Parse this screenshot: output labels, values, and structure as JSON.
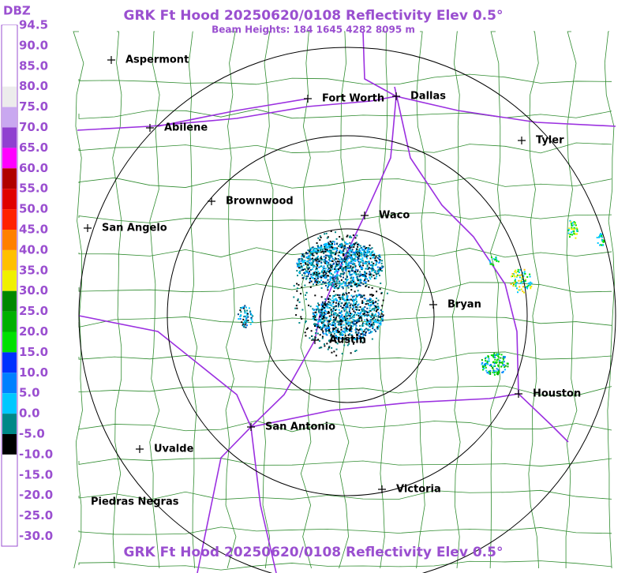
{
  "header": {
    "title": "GRK Ft Hood 20250620/0108 Reflectivity Elev 0.5°",
    "subtitle": "Beam Heights: 184 1645 4282 8095 m"
  },
  "footer": {
    "title": "GRK Ft Hood 20250620/0108 Reflectivity Elev 0.5°"
  },
  "legend": {
    "unit": "DBZ",
    "items": [
      {
        "label": "94.5",
        "color": "#ffffff"
      },
      {
        "label": "90.0",
        "color": "#ffffff"
      },
      {
        "label": "85.0",
        "color": "#ffffff"
      },
      {
        "label": "80.0",
        "color": "#ececec"
      },
      {
        "label": "75.0",
        "color": "#c9a8f0"
      },
      {
        "label": "70.0",
        "color": "#9040d0"
      },
      {
        "label": "65.0",
        "color": "#ff00ff"
      },
      {
        "label": "60.0",
        "color": "#b00000"
      },
      {
        "label": "55.0",
        "color": "#e00000"
      },
      {
        "label": "50.0",
        "color": "#ff2000"
      },
      {
        "label": "45.0",
        "color": "#ff8000"
      },
      {
        "label": "40.0",
        "color": "#ffc000"
      },
      {
        "label": "35.0",
        "color": "#f0f000"
      },
      {
        "label": "30.0",
        "color": "#008800"
      },
      {
        "label": "25.0",
        "color": "#00b000"
      },
      {
        "label": "20.0",
        "color": "#00e000"
      },
      {
        "label": "15.0",
        "color": "#0030ff"
      },
      {
        "label": "10.0",
        "color": "#0080ff"
      },
      {
        "label": "5.0",
        "color": "#00c8ff"
      },
      {
        "label": "0.0",
        "color": "#008888"
      },
      {
        "label": "-5.0",
        "color": "#000000"
      },
      {
        "label": "-10.0",
        "color": "#ffffff"
      },
      {
        "label": "-15.0",
        "color": "#ffffff"
      },
      {
        "label": "-20.0",
        "color": "#ffffff"
      },
      {
        "label": "-25.0",
        "color": "#ffffff"
      },
      {
        "label": "-30.0",
        "color": "#ffffff"
      }
    ]
  },
  "cities": [
    "Aspermont",
    "Fort Worth",
    "Dallas",
    "Abilene",
    "Tyler",
    "Brownwood",
    "Waco",
    "San Angelo",
    "Bryan",
    "Austin",
    "Houston",
    "San Antonio",
    "Uvalde",
    "Victoria",
    "Piedras Negras"
  ]
}
